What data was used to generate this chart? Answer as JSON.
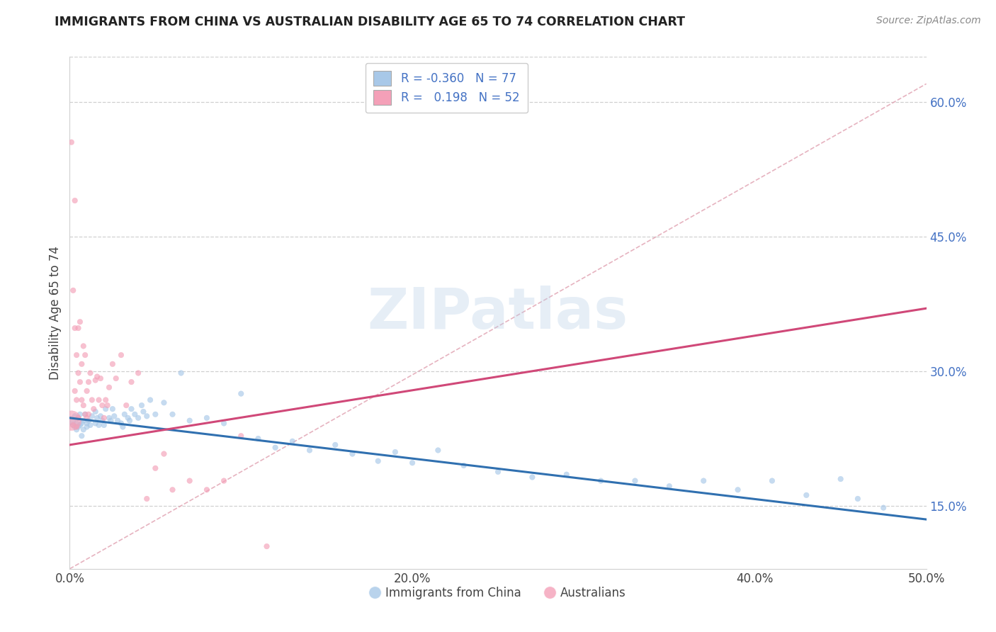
{
  "title": "IMMIGRANTS FROM CHINA VS AUSTRALIAN DISABILITY AGE 65 TO 74 CORRELATION CHART",
  "source": "Source: ZipAtlas.com",
  "xlabel": "",
  "ylabel": "Disability Age 65 to 74",
  "xlim": [
    0.0,
    0.5
  ],
  "ylim": [
    0.08,
    0.65
  ],
  "xticks": [
    0.0,
    0.1,
    0.2,
    0.3,
    0.4,
    0.5
  ],
  "xticklabels": [
    "0.0%",
    "",
    "20.0%",
    "",
    "40.0%",
    "50.0%"
  ],
  "yticks": [
    0.15,
    0.3,
    0.45,
    0.6
  ],
  "yticklabels": [
    "15.0%",
    "30.0%",
    "45.0%",
    "60.0%"
  ],
  "blue_R": -0.36,
  "blue_N": 77,
  "pink_R": 0.198,
  "pink_N": 52,
  "blue_color": "#a8c8e8",
  "pink_color": "#f4a0b8",
  "blue_line_color": "#3070b0",
  "pink_line_color": "#d04878",
  "legend_label_blue": "Immigrants from China",
  "legend_label_pink": "Australians",
  "blue_scatter_x": [
    0.001,
    0.002,
    0.003,
    0.003,
    0.004,
    0.004,
    0.005,
    0.005,
    0.006,
    0.006,
    0.007,
    0.007,
    0.008,
    0.008,
    0.009,
    0.01,
    0.01,
    0.011,
    0.012,
    0.013,
    0.015,
    0.015,
    0.016,
    0.017,
    0.018,
    0.019,
    0.02,
    0.021,
    0.023,
    0.024,
    0.025,
    0.026,
    0.028,
    0.03,
    0.031,
    0.032,
    0.034,
    0.035,
    0.036,
    0.038,
    0.04,
    0.042,
    0.043,
    0.045,
    0.047,
    0.05,
    0.055,
    0.06,
    0.065,
    0.07,
    0.08,
    0.09,
    0.1,
    0.11,
    0.12,
    0.13,
    0.14,
    0.155,
    0.165,
    0.18,
    0.19,
    0.2,
    0.215,
    0.23,
    0.25,
    0.27,
    0.29,
    0.31,
    0.33,
    0.35,
    0.37,
    0.39,
    0.41,
    0.43,
    0.45,
    0.46,
    0.475
  ],
  "blue_scatter_y": [
    0.245,
    0.24,
    0.25,
    0.238,
    0.242,
    0.235,
    0.248,
    0.238,
    0.252,
    0.24,
    0.228,
    0.242,
    0.245,
    0.235,
    0.252,
    0.242,
    0.238,
    0.245,
    0.24,
    0.25,
    0.255,
    0.242,
    0.248,
    0.24,
    0.25,
    0.245,
    0.24,
    0.258,
    0.248,
    0.245,
    0.258,
    0.25,
    0.245,
    0.242,
    0.238,
    0.252,
    0.248,
    0.245,
    0.258,
    0.252,
    0.248,
    0.262,
    0.255,
    0.25,
    0.268,
    0.252,
    0.265,
    0.252,
    0.298,
    0.245,
    0.248,
    0.242,
    0.275,
    0.225,
    0.215,
    0.222,
    0.212,
    0.218,
    0.208,
    0.2,
    0.21,
    0.198,
    0.212,
    0.195,
    0.188,
    0.182,
    0.185,
    0.178,
    0.178,
    0.172,
    0.178,
    0.168,
    0.178,
    0.162,
    0.18,
    0.158,
    0.148
  ],
  "blue_scatter_sizes": [
    80,
    30,
    30,
    30,
    30,
    30,
    30,
    30,
    30,
    30,
    30,
    30,
    30,
    30,
    30,
    30,
    30,
    30,
    30,
    30,
    30,
    30,
    30,
    30,
    30,
    30,
    30,
    30,
    30,
    30,
    30,
    30,
    30,
    30,
    30,
    30,
    30,
    30,
    30,
    30,
    30,
    30,
    30,
    30,
    30,
    30,
    30,
    30,
    30,
    30,
    30,
    30,
    30,
    30,
    30,
    30,
    30,
    30,
    30,
    30,
    30,
    30,
    30,
    30,
    30,
    30,
    30,
    30,
    30,
    30,
    30,
    30,
    30,
    30,
    30,
    30,
    30
  ],
  "pink_scatter_x": [
    0.001,
    0.001,
    0.002,
    0.002,
    0.003,
    0.003,
    0.003,
    0.004,
    0.004,
    0.004,
    0.005,
    0.005,
    0.005,
    0.006,
    0.006,
    0.007,
    0.007,
    0.008,
    0.008,
    0.009,
    0.009,
    0.01,
    0.01,
    0.011,
    0.011,
    0.012,
    0.013,
    0.014,
    0.015,
    0.016,
    0.017,
    0.018,
    0.019,
    0.02,
    0.021,
    0.022,
    0.023,
    0.025,
    0.027,
    0.03,
    0.033,
    0.036,
    0.04,
    0.045,
    0.05,
    0.055,
    0.06,
    0.07,
    0.08,
    0.09,
    0.1,
    0.115
  ],
  "pink_scatter_y": [
    0.245,
    0.555,
    0.39,
    0.24,
    0.49,
    0.348,
    0.278,
    0.318,
    0.268,
    0.238,
    0.348,
    0.298,
    0.248,
    0.355,
    0.288,
    0.308,
    0.268,
    0.328,
    0.262,
    0.318,
    0.252,
    0.278,
    0.248,
    0.288,
    0.252,
    0.298,
    0.268,
    0.258,
    0.29,
    0.294,
    0.268,
    0.292,
    0.262,
    0.248,
    0.268,
    0.262,
    0.282,
    0.308,
    0.292,
    0.318,
    0.262,
    0.288,
    0.298,
    0.158,
    0.192,
    0.208,
    0.168,
    0.178,
    0.168,
    0.178,
    0.228,
    0.105
  ],
  "pink_scatter_sizes": [
    400,
    30,
    30,
    30,
    30,
    30,
    30,
    30,
    30,
    30,
    30,
    30,
    30,
    30,
    30,
    30,
    30,
    30,
    30,
    30,
    30,
    30,
    30,
    30,
    30,
    30,
    30,
    30,
    30,
    30,
    30,
    30,
    30,
    30,
    30,
    30,
    30,
    30,
    30,
    30,
    30,
    30,
    30,
    30,
    30,
    30,
    30,
    30,
    30,
    30,
    30,
    30
  ],
  "blue_trend_x": [
    0.0,
    0.5
  ],
  "blue_trend_y": [
    0.248,
    0.135
  ],
  "pink_trend_x": [
    0.0,
    0.5
  ],
  "pink_trend_y": [
    0.218,
    0.37
  ],
  "ref_line_x": [
    0.0,
    0.5
  ],
  "ref_line_y": [
    0.08,
    0.62
  ],
  "watermark_text": "ZIPatlas",
  "background_color": "#ffffff",
  "grid_color": "#d0d0d0",
  "title_color": "#222222",
  "axis_label_color": "#444444",
  "ytick_color": "#4472c4",
  "xtick_color": "#444444",
  "source_color": "#888888",
  "ref_line_color": "#e0a0b0"
}
